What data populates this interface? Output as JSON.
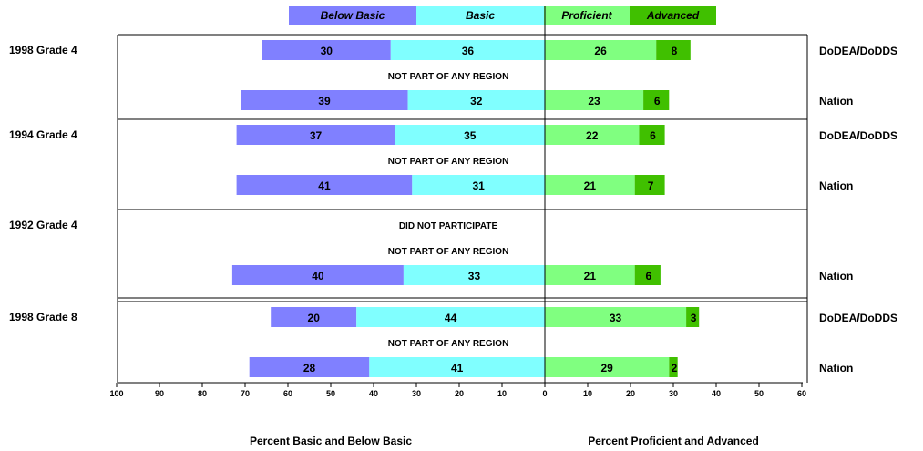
{
  "chart_data": {
    "type": "bar",
    "subtype": "diverging-stacked-bar",
    "legend": {
      "placement": "top-center",
      "items": [
        {
          "key": "below_basic",
          "label": "Below Basic",
          "color": "#8080ff"
        },
        {
          "key": "basic",
          "label": "Basic",
          "color": "#80ffff"
        },
        {
          "key": "proficient",
          "label": "Proficient",
          "color": "#80ff80"
        },
        {
          "key": "advanced",
          "label": "Advanced",
          "color": "#40c000"
        }
      ]
    },
    "x_left": {
      "label": "Percent Basic and Below Basic",
      "ticks": [
        "100",
        "90",
        "80",
        "70",
        "60",
        "50",
        "40",
        "30",
        "20",
        "10",
        "0"
      ],
      "range": [
        0,
        100
      ]
    },
    "x_right": {
      "label": "Percent Proficient and Advanced",
      "ticks": [
        "10",
        "20",
        "30",
        "40",
        "50",
        "60"
      ],
      "range": [
        0,
        60
      ]
    },
    "groups": [
      {
        "label": "1998 Grade 4",
        "rows": [
          {
            "type": "bar",
            "entity": "DoDEA/DoDDS",
            "below_basic": 30,
            "basic": 36,
            "proficient": 26,
            "advanced": 8
          },
          {
            "type": "note",
            "text": "NOT PART OF ANY REGION"
          },
          {
            "type": "bar",
            "entity": "Nation",
            "below_basic": 39,
            "basic": 32,
            "proficient": 23,
            "advanced": 6
          }
        ]
      },
      {
        "label": "1994 Grade 4",
        "rows": [
          {
            "type": "bar",
            "entity": "DoDEA/DoDDS",
            "below_basic": 37,
            "basic": 35,
            "proficient": 22,
            "advanced": 6
          },
          {
            "type": "note",
            "text": "NOT PART OF ANY REGION"
          },
          {
            "type": "bar",
            "entity": "Nation",
            "below_basic": 41,
            "basic": 31,
            "proficient": 21,
            "advanced": 7
          }
        ]
      },
      {
        "label": "1992 Grade 4",
        "rows": [
          {
            "type": "note",
            "text": "DID NOT PARTICIPATE"
          },
          {
            "type": "note",
            "text": "NOT PART OF ANY REGION"
          },
          {
            "type": "bar",
            "entity": "Nation",
            "below_basic": 40,
            "basic": 33,
            "proficient": 21,
            "advanced": 6
          }
        ]
      },
      {
        "label": "1998 Grade 8",
        "rows": [
          {
            "type": "bar",
            "entity": "DoDEA/DoDDS",
            "below_basic": 20,
            "basic": 44,
            "proficient": 33,
            "advanced": 3
          },
          {
            "type": "note",
            "text": "NOT PART OF ANY REGION"
          },
          {
            "type": "bar",
            "entity": "Nation",
            "below_basic": 28,
            "basic": 41,
            "proficient": 29,
            "advanced": 2
          }
        ]
      }
    ]
  }
}
